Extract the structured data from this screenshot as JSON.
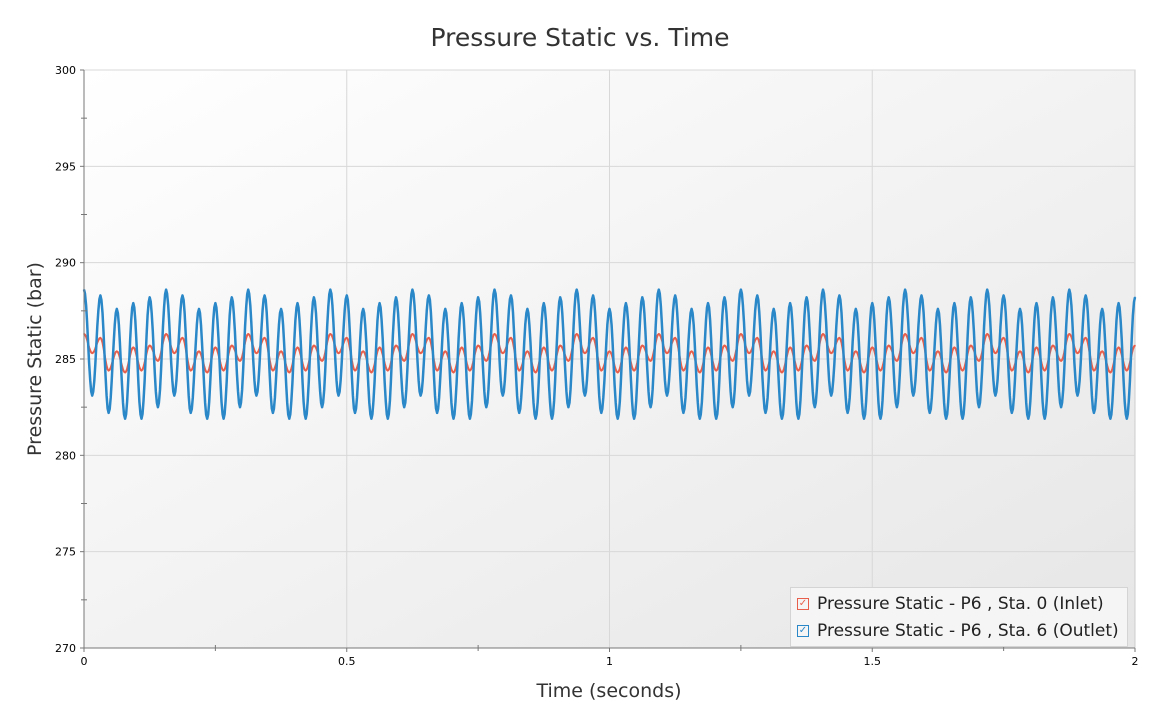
{
  "chart_data": {
    "type": "line",
    "title": "Pressure Static vs. Time",
    "xlabel": "Time (seconds)",
    "ylabel": "Pressure Static (bar)",
    "xlim": [
      0,
      2
    ],
    "ylim": [
      270,
      300
    ],
    "xticks": [
      "0",
      "0.5",
      "1",
      "1.5",
      "2"
    ],
    "yticks": [
      "270",
      "275",
      "280",
      "285",
      "290",
      "295",
      "300"
    ],
    "grid": true,
    "legend_position": "bottom-right",
    "series": [
      {
        "name": "Pressure Static - P6 , Sta. 0 (Inlet)",
        "color": "#e8604c",
        "x_range": [
          0,
          2
        ],
        "extrema": [
          286.3,
          285.3,
          286.1,
          284.4,
          285.4,
          284.3,
          285.6,
          284.4,
          285.7,
          284.9,
          286.3,
          285.3,
          286.1,
          284.4,
          285.4,
          284.3,
          285.6,
          284.4,
          285.7,
          284.9,
          286.3,
          285.3,
          286.1,
          284.4,
          285.4,
          284.3,
          285.6,
          284.4,
          285.7,
          284.9,
          286.3,
          285.3,
          286.1,
          284.4,
          285.4,
          284.3,
          285.6,
          284.4,
          285.7,
          284.9,
          286.3,
          285.3,
          286.1,
          284.4,
          285.4,
          284.3,
          285.6,
          284.4,
          285.7,
          284.9,
          286.3,
          285.3,
          286.1,
          284.4,
          285.4,
          284.3,
          285.6,
          284.4,
          285.7,
          284.9,
          286.3,
          285.3,
          286.1,
          284.4,
          285.4,
          284.3,
          285.6,
          284.4,
          285.7,
          284.9,
          286.3,
          285.3,
          286.1,
          284.4,
          285.4,
          284.3,
          285.6,
          284.4,
          285.7,
          284.9,
          286.3,
          285.3,
          286.1,
          284.4,
          285.4,
          284.3,
          285.6,
          284.4,
          285.7,
          284.9,
          286.3,
          285.3,
          286.1,
          284.4,
          285.4,
          284.3,
          285.6,
          284.4,
          285.7,
          284.9,
          286.3,
          285.3,
          286.1,
          284.4,
          285.4,
          284.3,
          285.6,
          284.4,
          285.7,
          284.9,
          286.3,
          285.3,
          286.1,
          284.4,
          285.4,
          284.3,
          285.6,
          284.4,
          285.7,
          284.9,
          286.3,
          285.3,
          286.1,
          284.4,
          285.4,
          284.3,
          285.6,
          284.4,
          285.7
        ]
      },
      {
        "name": "Pressure Static - P6 , Sta. 6 (Outlet)",
        "color": "#2a87c8",
        "x_range": [
          0,
          2
        ],
        "extrema": [
          288.6,
          283.1,
          288.3,
          282.2,
          287.6,
          281.9,
          287.9,
          281.9,
          288.2,
          282.5,
          288.6,
          283.1,
          288.3,
          282.2,
          287.6,
          281.9,
          287.9,
          281.9,
          288.2,
          282.5,
          288.6,
          283.1,
          288.3,
          282.2,
          287.6,
          281.9,
          287.9,
          281.9,
          288.2,
          282.5,
          288.6,
          283.1,
          288.3,
          282.2,
          287.6,
          281.9,
          287.9,
          281.9,
          288.2,
          282.5,
          288.6,
          283.1,
          288.3,
          282.2,
          287.6,
          281.9,
          287.9,
          281.9,
          288.2,
          282.5,
          288.6,
          283.1,
          288.3,
          282.2,
          287.6,
          281.9,
          287.9,
          281.9,
          288.2,
          282.5,
          288.6,
          283.1,
          288.3,
          282.2,
          287.6,
          281.9,
          287.9,
          281.9,
          288.2,
          282.5,
          288.6,
          283.1,
          288.3,
          282.2,
          287.6,
          281.9,
          287.9,
          281.9,
          288.2,
          282.5,
          288.6,
          283.1,
          288.3,
          282.2,
          287.6,
          281.9,
          287.9,
          281.9,
          288.2,
          282.5,
          288.6,
          283.1,
          288.3,
          282.2,
          287.6,
          281.9,
          287.9,
          281.9,
          288.2,
          282.5,
          288.6,
          283.1,
          288.3,
          282.2,
          287.6,
          281.9,
          287.9,
          281.9,
          288.2,
          282.5,
          288.6,
          283.1,
          288.3,
          282.2,
          287.6,
          281.9,
          287.9,
          281.9,
          288.2,
          282.5,
          288.6,
          283.1,
          288.3,
          282.2,
          287.6,
          281.9,
          287.9,
          281.9,
          288.2
        ]
      }
    ]
  }
}
